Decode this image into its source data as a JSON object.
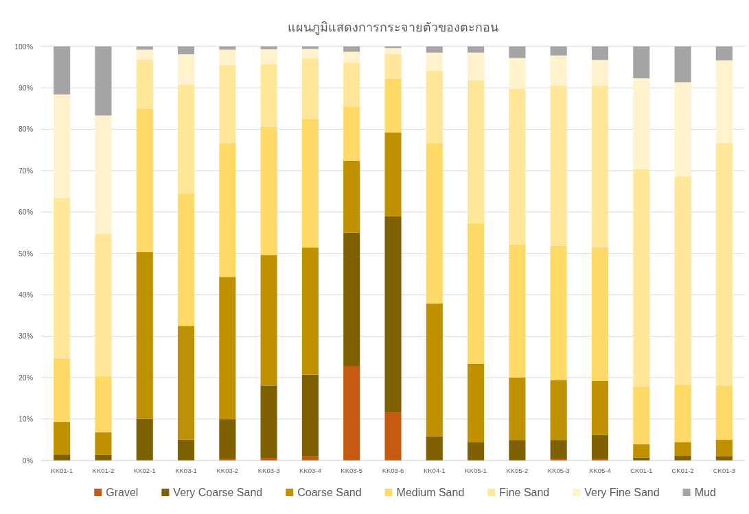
{
  "chart_data": {
    "type": "bar",
    "title": "แผนภูมิแสดงการกระจายตัวของตะกอน",
    "stacked": true,
    "grid": "y",
    "legend": "bottom",
    "categories": [
      "KK01-1",
      "KK01-2",
      "KK02-1",
      "KK03-1",
      "KK03-2",
      "KK03-3",
      "KK03-4",
      "KK03-5",
      "KK03-6",
      "KK04-1",
      "KK05-1",
      "KK05-2",
      "KK05-3",
      "KK05-4",
      "CK01-1",
      "CK01-2",
      "CK01-3"
    ],
    "ylim": [
      0,
      100
    ],
    "yticks": [
      {
        "value": 0,
        "label": "0%"
      },
      {
        "value": 10,
        "label": "10%"
      },
      {
        "value": 20,
        "label": "20%"
      },
      {
        "value": 30,
        "label": "30%"
      },
      {
        "value": 40,
        "label": "40%"
      },
      {
        "value": 50,
        "label": "50%"
      },
      {
        "value": 60,
        "label": "60%"
      },
      {
        "value": 70,
        "label": "70%"
      },
      {
        "value": 80,
        "label": "80%"
      },
      {
        "value": 90,
        "label": "90%"
      },
      {
        "value": 100,
        "label": "100%"
      }
    ],
    "series": [
      {
        "name": "Gravel",
        "color": "#c55a11",
        "values": [
          0,
          0,
          0,
          0,
          0.3,
          0.6,
          1.1,
          22.8,
          11.7,
          0,
          0,
          0,
          0.3,
          0.3,
          0,
          0,
          0
        ]
      },
      {
        "name": "Very Coarse Sand",
        "color": "#7f6000",
        "values": [
          1.4,
          1.3,
          10.1,
          5.0,
          9.6,
          17.5,
          19.6,
          32.2,
          47.3,
          5.8,
          4.4,
          4.9,
          4.6,
          5.8,
          0.7,
          1.1,
          1.0
        ]
      },
      {
        "name": "Coarse Sand",
        "color": "#bf9000",
        "values": [
          7.9,
          5.5,
          40.2,
          27.5,
          34.4,
          31.5,
          30.7,
          17.3,
          20.2,
          32.1,
          18.9,
          15.1,
          14.5,
          13.1,
          3.2,
          3.3,
          4.0
        ]
      },
      {
        "name": "Medium Sand",
        "color": "#ffd966",
        "values": [
          15.4,
          13.5,
          34.7,
          32.0,
          32.4,
          31.0,
          31.1,
          13.2,
          13.0,
          38.7,
          34.0,
          32.1,
          32.4,
          32.3,
          13.9,
          13.8,
          13.0
        ]
      },
      {
        "name": "Fine Sand",
        "color": "#ffe699",
        "values": [
          38.7,
          34.4,
          11.9,
          26.3,
          18.8,
          15.1,
          14.6,
          10.5,
          6.0,
          17.5,
          34.6,
          37.6,
          38.7,
          39.0,
          52.5,
          50.4,
          58.6
        ]
      },
      {
        "name": "Very Fine Sand",
        "color": "#fff2cc",
        "values": [
          25.0,
          28.6,
          2.3,
          7.3,
          3.7,
          3.6,
          2.3,
          2.7,
          1.4,
          4.4,
          6.6,
          7.5,
          7.3,
          6.2,
          22.0,
          22.7,
          20.0
        ]
      },
      {
        "name": "Mud",
        "color": "#a5a5a5",
        "values": [
          11.6,
          16.7,
          0.8,
          1.9,
          0.8,
          0.7,
          0.6,
          1.3,
          0.4,
          1.5,
          1.5,
          2.8,
          2.2,
          3.3,
          7.7,
          8.7,
          3.4
        ]
      }
    ]
  }
}
